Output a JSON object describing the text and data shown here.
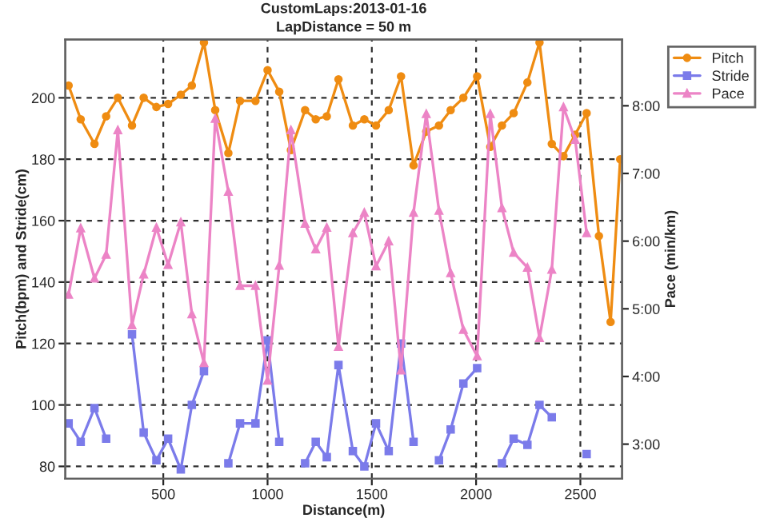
{
  "chart_data": {
    "type": "line",
    "title": "CustomLaps:2013-01-16",
    "subtitle": "LapDistance = 50 m",
    "xlabel": "Distance(m)",
    "ylabel": "Pitch(bpm) and Stride(cm)",
    "y2label": "Pace (min/km)",
    "x": [
      46,
      104,
      170,
      226,
      282,
      350,
      406,
      467,
      523,
      584,
      637,
      695,
      749,
      812,
      868,
      942,
      1000,
      1056,
      1112,
      1180,
      1231,
      1284,
      1340,
      1409,
      1464,
      1520,
      1581,
      1640,
      1700,
      1761,
      1822,
      1878,
      1939,
      2005,
      2068,
      2124,
      2180,
      2246,
      2304,
      2363,
      2419,
      2475,
      2530,
      2589,
      2645,
      2691
    ],
    "series": [
      {
        "name": "Pitch",
        "color": "#ef8c12",
        "marker": "circle",
        "values": [
          204,
          193,
          185,
          194,
          200,
          191,
          200,
          197,
          198,
          201,
          204,
          218,
          196,
          182,
          199,
          199,
          209,
          202,
          183,
          196,
          193,
          194,
          206,
          191,
          193,
          191,
          196,
          207,
          178,
          189,
          191,
          196,
          200,
          207,
          184,
          191,
          195,
          205,
          218,
          185,
          181,
          188,
          195,
          155,
          127,
          180
        ]
      },
      {
        "name": "Stride",
        "color": "#7b7bea",
        "marker": "square",
        "values": [
          94,
          88,
          99,
          89,
          null,
          123,
          91,
          82,
          89,
          79,
          100,
          111,
          null,
          81,
          94,
          94,
          121,
          88,
          null,
          81,
          88,
          83,
          113,
          85,
          80,
          94,
          85,
          120,
          88,
          null,
          82,
          92,
          107,
          112,
          null,
          81,
          89,
          87,
          100,
          96,
          null,
          null,
          84,
          null,
          null,
          null
        ]
      },
      {
        "name": "Pace",
        "color": "#ec84c6",
        "marker": "triangle",
        "axis": "y2",
        "values": [
          5.21,
          6.19,
          5.45,
          5.8,
          7.64,
          4.76,
          5.51,
          6.2,
          5.65,
          6.28,
          4.92,
          4.2,
          7.81,
          6.73,
          5.34,
          5.34,
          3.94,
          5.64,
          7.64,
          6.26,
          5.88,
          6.2,
          4.44,
          6.12,
          6.42,
          5.63,
          6.0,
          4.09,
          6.42,
          7.88,
          6.45,
          5.53,
          4.69,
          4.3,
          7.88,
          6.49,
          5.83,
          5.61,
          4.57,
          5.58,
          7.98,
          7.5,
          6.12,
          null,
          null,
          null
        ]
      }
    ],
    "xlim": [
      30,
      2700
    ],
    "xticks": [
      500,
      1000,
      1500,
      2000,
      2500
    ],
    "ylim": [
      76,
      219
    ],
    "yticks": [
      80,
      100,
      120,
      140,
      160,
      180,
      200
    ],
    "y2lim": [
      2.49,
      8.98
    ],
    "y2ticks": [
      {
        "value": 3,
        "label": "3:00"
      },
      {
        "value": 4,
        "label": "4:00"
      },
      {
        "value": 5,
        "label": "5:00"
      },
      {
        "value": 6,
        "label": "6:00"
      },
      {
        "value": 7,
        "label": "7:00"
      },
      {
        "value": 8,
        "label": "8:00"
      }
    ],
    "grid": true,
    "legend": "top right",
    "line_style": "solid"
  }
}
